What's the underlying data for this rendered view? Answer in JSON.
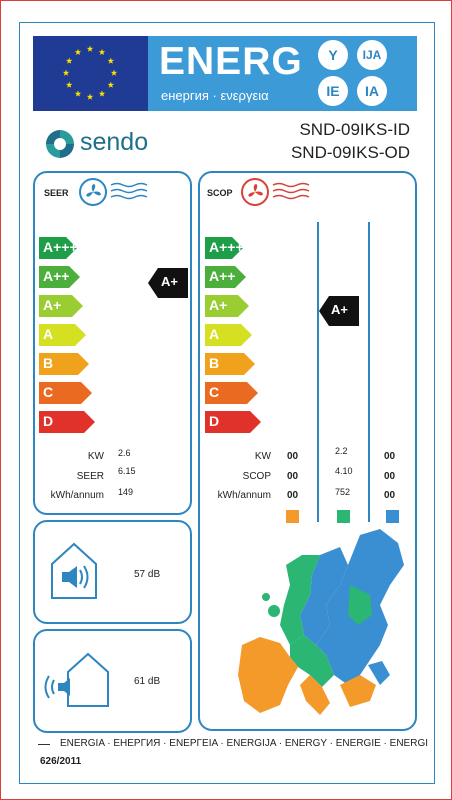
{
  "header": {
    "title": "ENERG",
    "subtitle": "енергия · ενεργεια",
    "circles": [
      "Y",
      "IJA",
      "IE",
      "IA"
    ]
  },
  "brand": {
    "name": "sendo"
  },
  "model": {
    "indoor": "SND-09IKS-ID",
    "outdoor": "SND-09IKS-OD"
  },
  "cooling": {
    "title": "SEER",
    "classes": [
      "A+++",
      "A++",
      "A+",
      "A",
      "B",
      "C",
      "D"
    ],
    "rating": "A+",
    "rows": [
      {
        "label": "KW",
        "value": "2.6"
      },
      {
        "label": "SEER",
        "value": "6.15"
      },
      {
        "label": "kWh/annum",
        "value": "149"
      }
    ],
    "noise": [
      {
        "icon": "speaker-house-icon",
        "value": "57 dB"
      },
      {
        "icon": "speaker-outdoor-icon",
        "value": "61 dB"
      }
    ]
  },
  "heating": {
    "title": "SCOP",
    "classes": [
      "A+++",
      "A++",
      "A+",
      "A",
      "B",
      "C",
      "D"
    ],
    "rating": "A+",
    "row_labels": [
      "KW",
      "SCOP",
      "kWh/annum"
    ],
    "columns": [
      {
        "zone": "warmer",
        "color": "#f39a2b",
        "values": [
          "00",
          "00",
          "00"
        ]
      },
      {
        "zone": "average",
        "color": "#2bb673",
        "values": [
          "2.2",
          "4.10",
          "752"
        ]
      },
      {
        "zone": "colder",
        "color": "#3a8fd3",
        "values": [
          "00",
          "00",
          "00"
        ]
      }
    ]
  },
  "colors": {
    "blue": "#2e86c1",
    "classes": [
      "#1e9e48",
      "#4caf3c",
      "#9acd32",
      "#d4e021",
      "#f0a21d",
      "#ea6a22",
      "#e0322a"
    ]
  },
  "footer": {
    "languages": "ENERGIA · ЕНЕРГИЯ · ΕΝΕΡΓΕΙΑ · ENERGIJA · ENERGY · ENERGIE · ENERGI",
    "regulation": "626/2011"
  }
}
